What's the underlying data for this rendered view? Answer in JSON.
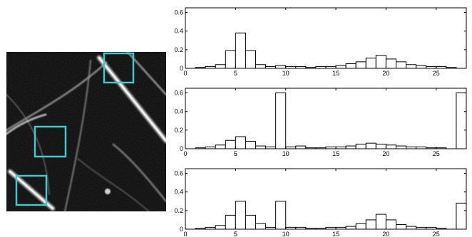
{
  "image_panel": {
    "boxes": [
      {
        "label": "box-top-right"
      },
      {
        "label": "box-middle"
      },
      {
        "label": "box-bottom-left"
      }
    ],
    "box_color": "#40c8cc",
    "background_color": "#000000"
  },
  "chart_data": [
    {
      "type": "bar",
      "style": "step-histogram",
      "x": [
        0,
        1,
        2,
        3,
        4,
        5,
        6,
        7,
        8,
        9,
        10,
        11,
        12,
        13,
        14,
        15,
        16,
        17,
        18,
        19,
        20,
        21,
        22,
        23,
        24,
        25,
        26,
        27
      ],
      "values": [
        0.0,
        0.01,
        0.02,
        0.04,
        0.19,
        0.38,
        0.19,
        0.04,
        0.02,
        0.03,
        0.02,
        0.02,
        0.01,
        0.02,
        0.02,
        0.03,
        0.05,
        0.07,
        0.11,
        0.14,
        0.1,
        0.07,
        0.04,
        0.03,
        0.02,
        0.02,
        0.01,
        0.0
      ],
      "xlim": [
        0,
        28
      ],
      "ylim": [
        0,
        0.65
      ],
      "xticks": [
        "0",
        "5",
        "10",
        "15",
        "20",
        "25"
      ],
      "yticks": [
        "0",
        "0.2",
        "0.4",
        "0.6"
      ],
      "title": "",
      "xlabel": "",
      "ylabel": ""
    },
    {
      "type": "bar",
      "style": "step-histogram",
      "x": [
        0,
        1,
        2,
        3,
        4,
        5,
        6,
        7,
        8,
        9,
        10,
        11,
        12,
        13,
        14,
        15,
        16,
        17,
        18,
        19,
        20,
        21,
        22,
        23,
        24,
        25,
        26,
        27
      ],
      "values": [
        0.0,
        0.01,
        0.02,
        0.04,
        0.09,
        0.13,
        0.08,
        0.03,
        0.02,
        0.6,
        0.02,
        0.03,
        0.01,
        0.01,
        0.02,
        0.02,
        0.03,
        0.05,
        0.06,
        0.05,
        0.04,
        0.03,
        0.02,
        0.02,
        0.01,
        0.01,
        0.0,
        0.6
      ],
      "xlim": [
        0,
        28
      ],
      "ylim": [
        0,
        0.65
      ],
      "xticks": [
        "0",
        "5",
        "10",
        "15",
        "20",
        "25"
      ],
      "yticks": [
        "0",
        "0.2",
        "0.4",
        "0.6"
      ],
      "title": "",
      "xlabel": "",
      "ylabel": ""
    },
    {
      "type": "bar",
      "style": "step-histogram",
      "x": [
        0,
        1,
        2,
        3,
        4,
        5,
        6,
        7,
        8,
        9,
        10,
        11,
        12,
        13,
        14,
        15,
        16,
        17,
        18,
        19,
        20,
        21,
        22,
        23,
        24,
        25,
        26,
        27
      ],
      "values": [
        0.0,
        0.01,
        0.02,
        0.04,
        0.15,
        0.3,
        0.15,
        0.06,
        0.02,
        0.3,
        0.02,
        0.02,
        0.01,
        0.01,
        0.02,
        0.02,
        0.03,
        0.06,
        0.1,
        0.16,
        0.1,
        0.05,
        0.03,
        0.02,
        0.02,
        0.01,
        0.0,
        0.28
      ],
      "xlim": [
        0,
        28
      ],
      "ylim": [
        0,
        0.65
      ],
      "xticks": [
        "0",
        "5",
        "10",
        "15",
        "20",
        "25"
      ],
      "yticks": [
        "0",
        "0.2",
        "0.4",
        "0.6"
      ],
      "title": "",
      "xlabel": "",
      "ylabel": ""
    }
  ]
}
